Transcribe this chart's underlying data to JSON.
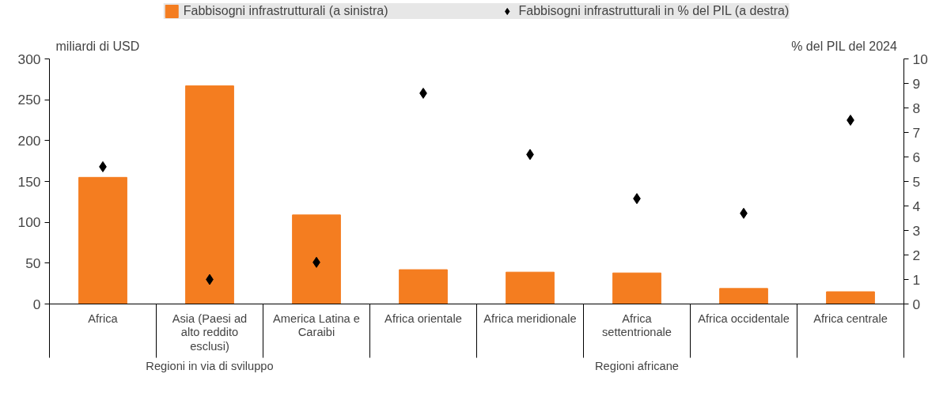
{
  "chart_data": {
    "type": "bar",
    "categories": [
      "Africa",
      "Asia (Paesi ad alto reddito esclusi)",
      "America Latina e Caraibi",
      "Africa orientale",
      "Africa meridionale",
      "Africa settentrionale",
      "Africa occidentale",
      "Africa centrale"
    ],
    "series": [
      {
        "name": "Fabbisogni infrastrutturali (a sinistra)",
        "color": "#f47d20",
        "values": [
          155,
          267,
          109,
          42,
          39,
          38,
          19,
          15
        ]
      },
      {
        "name": "Fabbisogni infrastrutturali in % del PIL (a destra)",
        "type": "scatter",
        "axis": "y2",
        "color": "#000000",
        "values": [
          5.6,
          1.0,
          1.7,
          8.6,
          6.1,
          4.3,
          3.7,
          7.5
        ]
      }
    ],
    "ylabel": "miliardi di USD",
    "y2label": "% del PIL del 2024",
    "ylim": [
      0,
      300
    ],
    "yticks": [
      0,
      50,
      100,
      150,
      200,
      250,
      300
    ],
    "y2lim": [
      0,
      10
    ],
    "y2ticks": [
      0,
      1,
      2,
      3,
      4,
      5,
      6,
      7,
      8,
      9,
      10
    ],
    "annotations": [
      "Regioni in via di sviluppo",
      "Regioni africane"
    ],
    "legend": "top",
    "marker": "diamond",
    "grid": false
  }
}
